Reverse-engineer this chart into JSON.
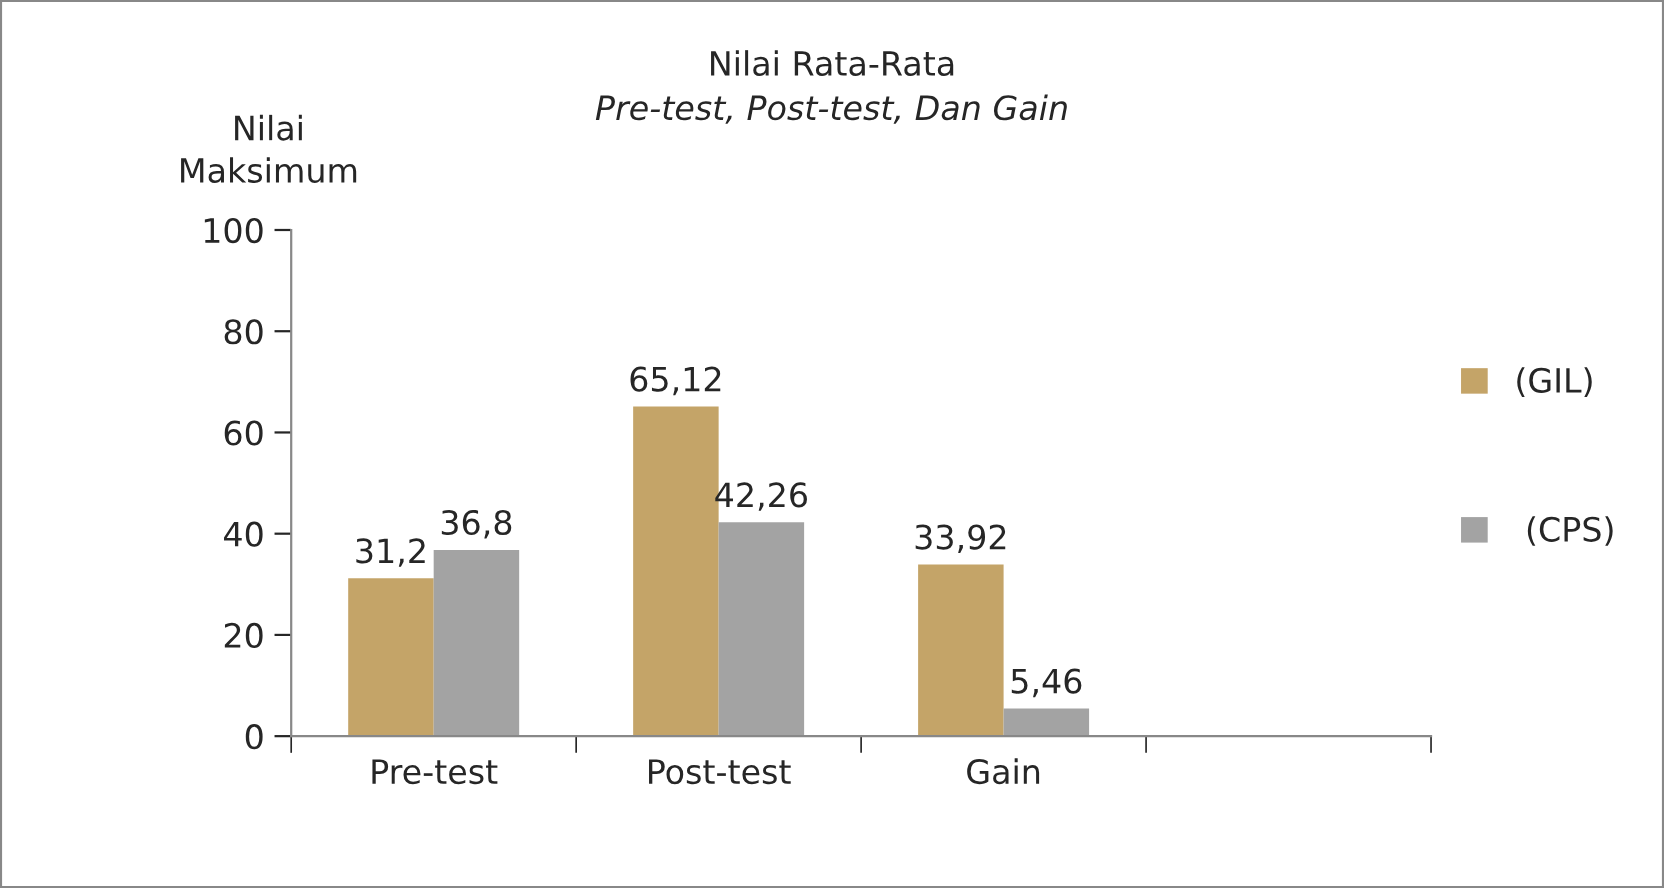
{
  "chart_data": {
    "type": "bar",
    "title": "Nilai Rata-Rata",
    "subtitle": "Pre-test, Post-test, Dan Gain",
    "ylabel": "Nilai\nMaksimum",
    "categories": [
      "Pre-test",
      "Post-test",
      "Gain",
      null
    ],
    "series": [
      {
        "name": "(GIL)",
        "color": "#c4a468",
        "values": [
          31.2,
          65.12,
          33.92,
          null
        ],
        "value_labels": [
          "31,2",
          "65,12",
          "33,92",
          null
        ]
      },
      {
        "name": " (CPS)",
        "color": "#a3a3a3",
        "values": [
          36.8,
          42.26,
          5.46,
          null
        ],
        "value_labels": [
          "36,8",
          "42,26",
          "5,46",
          null
        ]
      }
    ],
    "ylim": [
      0,
      100
    ],
    "yticks": [
      0,
      20,
      40,
      60,
      80,
      100
    ],
    "grid": false,
    "legend": "right"
  }
}
